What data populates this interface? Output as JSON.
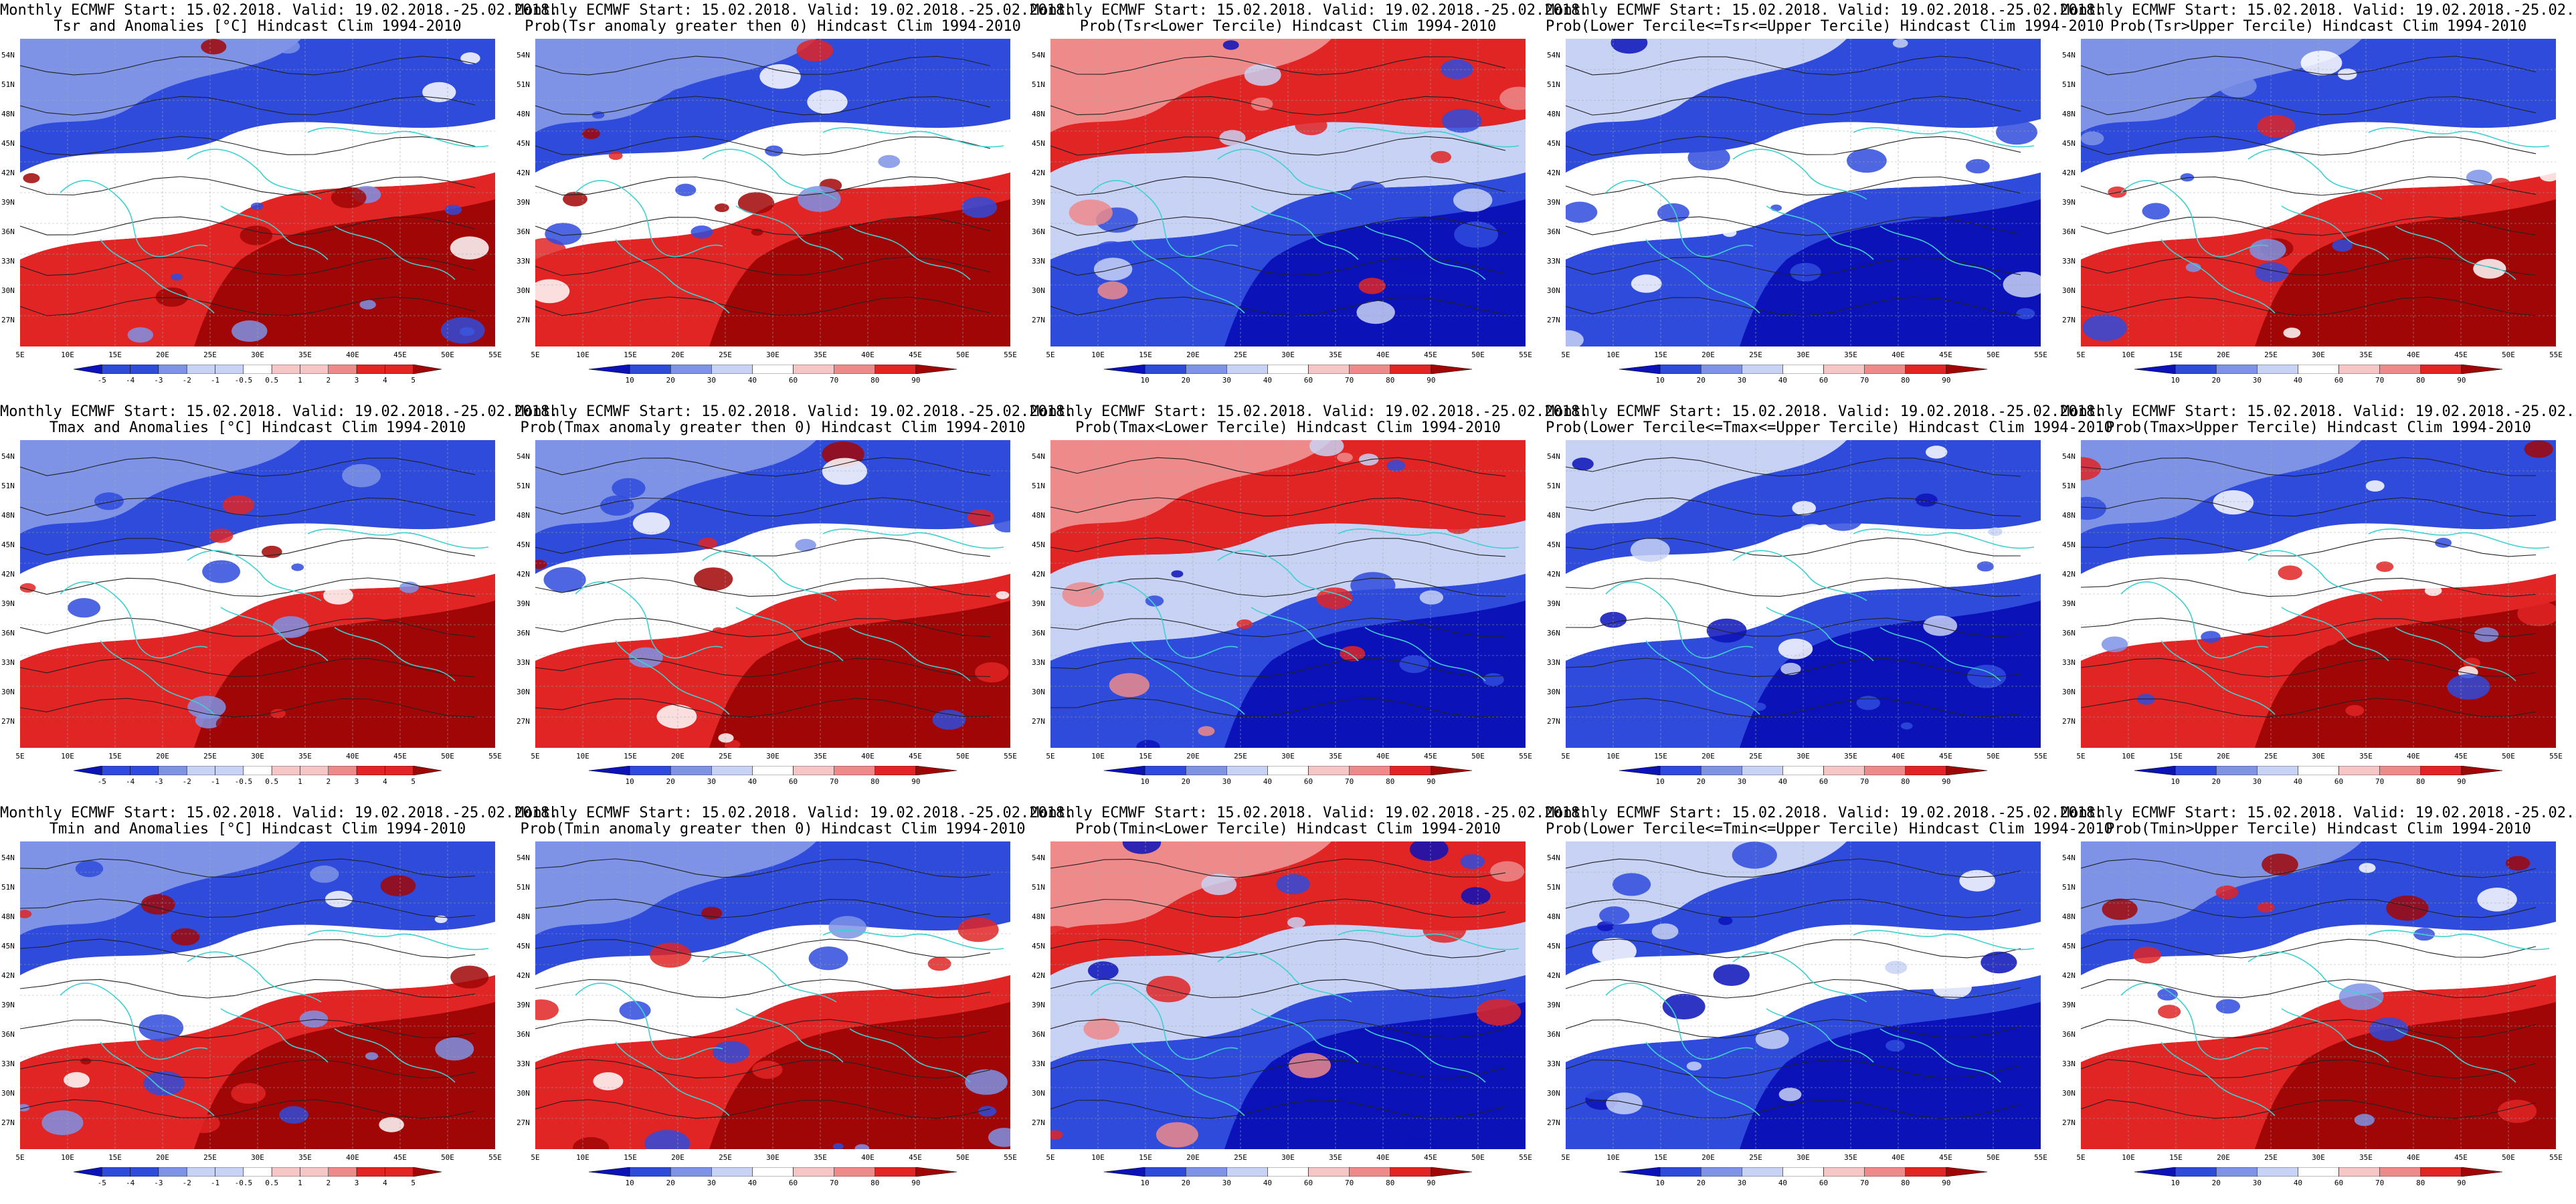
{
  "header_line": "Monthly ECMWF Start: 15.02.2018. Valid: 19.02.2018.-25.02.2018.",
  "lat_labels": [
    "54N",
    "51N",
    "48N",
    "45N",
    "42N",
    "39N",
    "36N",
    "33N",
    "30N",
    "27N"
  ],
  "lon_labels": [
    "5E",
    "10E",
    "15E",
    "20E",
    "25E",
    "30E",
    "35E",
    "40E",
    "45E",
    "50E",
    "55E"
  ],
  "colorbar_anom": [
    "-5",
    "-4",
    "-3",
    "-2",
    "-1",
    "-0.5",
    "0.5",
    "1",
    "2",
    "3",
    "4",
    "5"
  ],
  "colorbar_prob": [
    "10",
    "20",
    "30",
    "40",
    "60",
    "70",
    "80",
    "90"
  ],
  "palette": {
    "deep_blue": "#0a12b8",
    "blue": "#2f4bdc",
    "mid_blue": "#7e93e6",
    "pale_blue": "#c8d2f4",
    "white": "#ffffff",
    "pale_red": "#f6c6c6",
    "mid_red": "#ef8a8a",
    "red": "#e12424",
    "deep_red": "#a10606",
    "coast": "#3fd0d0",
    "contour": "#222222"
  },
  "panels": [
    {
      "row": 0,
      "col": 0,
      "subtitle": "Tsr and Anomalies [°C] Hindcast Clim 1994-2010",
      "kind": "anom",
      "pattern": "warm"
    },
    {
      "row": 0,
      "col": 1,
      "subtitle": "Prob(Tsr anomaly greater then 0) Hindcast Clim 1994-2010",
      "kind": "prob",
      "pattern": "warm"
    },
    {
      "row": 0,
      "col": 2,
      "subtitle": "Prob(Tsr<Lower Tercile) Hindcast Clim 1994-2010",
      "kind": "prob",
      "pattern": "cold"
    },
    {
      "row": 0,
      "col": 3,
      "subtitle": "Prob(Lower Tercile<=Tsr<=Upper Tercile) Hindcast Clim 1994-2010",
      "kind": "prob",
      "pattern": "mid"
    },
    {
      "row": 0,
      "col": 4,
      "subtitle": "Prob(Tsr>Upper Tercile) Hindcast Clim 1994-2010",
      "kind": "prob",
      "pattern": "warm"
    },
    {
      "row": 1,
      "col": 0,
      "subtitle": "Tmax and Anomalies [°C] Hindcast Clim 1994-2010",
      "kind": "anom",
      "pattern": "warm"
    },
    {
      "row": 1,
      "col": 1,
      "subtitle": "Prob(Tmax anomaly greater then 0) Hindcast Clim 1994-2010",
      "kind": "prob",
      "pattern": "warm"
    },
    {
      "row": 1,
      "col": 2,
      "subtitle": "Prob(Tmax<Lower Tercile) Hindcast Clim 1994-2010",
      "kind": "prob",
      "pattern": "cold"
    },
    {
      "row": 1,
      "col": 3,
      "subtitle": "Prob(Lower Tercile<=Tmax<=Upper Tercile) Hindcast Clim 1994-2010",
      "kind": "prob",
      "pattern": "mid"
    },
    {
      "row": 1,
      "col": 4,
      "subtitle": "Prob(Tmax>Upper Tercile) Hindcast Clim 1994-2010",
      "kind": "prob",
      "pattern": "warm"
    },
    {
      "row": 2,
      "col": 0,
      "subtitle": "Tmin and Anomalies [°C] Hindcast Clim 1994-2010",
      "kind": "anom",
      "pattern": "warm"
    },
    {
      "row": 2,
      "col": 1,
      "subtitle": "Prob(Tmin anomaly greater then 0) Hindcast Clim 1994-2010",
      "kind": "prob",
      "pattern": "warm"
    },
    {
      "row": 2,
      "col": 2,
      "subtitle": "Prob(Tmin<Lower Tercile) Hindcast Clim 1994-2010",
      "kind": "prob",
      "pattern": "cold"
    },
    {
      "row": 2,
      "col": 3,
      "subtitle": "Prob(Lower Tercile<=Tmin<=Upper Tercile) Hindcast Clim 1994-2010",
      "kind": "prob",
      "pattern": "mid"
    },
    {
      "row": 2,
      "col": 4,
      "subtitle": "Prob(Tmin>Upper Tercile) Hindcast Clim 1994-2010",
      "kind": "prob",
      "pattern": "warm"
    }
  ]
}
